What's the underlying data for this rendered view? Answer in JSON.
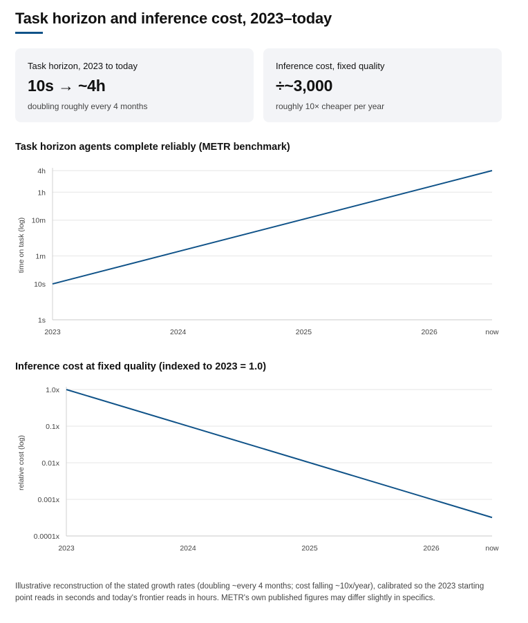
{
  "page": {
    "title": "Task horizon and inference cost, 2023–today"
  },
  "cards": [
    {
      "label": "Task horizon, 2023 to today",
      "value": "10s → ~4h",
      "sub": "doubling roughly every 4 months"
    },
    {
      "label": "Inference cost, fixed quality",
      "value": "÷~3,000",
      "sub": "roughly 10× cheaper per year"
    }
  ],
  "footnote": "Illustrative reconstruction of the stated growth rates (doubling ~every 4 months; cost falling ~10x/year), calibrated so the 2023 starting point reads in seconds and today's frontier reads in hours. METR's own published figures may differ slightly in specifics.",
  "colors": {
    "line": "#0f5288",
    "accent": "#0f5288",
    "card_bg": "#f3f4f7",
    "grid": "#e6e6e6"
  },
  "chart_data": [
    {
      "type": "line",
      "title": "Task horizon agents complete reliably (METR benchmark)",
      "xlabel": "",
      "ylabel": "time on task (log)",
      "yscale": "log",
      "x_ticks": [
        {
          "label": "2023",
          "value": 2023.0
        },
        {
          "label": "2024",
          "value": 2024.0
        },
        {
          "label": "2025",
          "value": 2025.0
        },
        {
          "label": "2026",
          "value": 2026.0
        },
        {
          "label": "now",
          "value": 2026.5
        }
      ],
      "y_ticks": [
        {
          "label": "1s",
          "value": 1
        },
        {
          "label": "10s",
          "value": 10
        },
        {
          "label": "1m",
          "value": 60
        },
        {
          "label": "10m",
          "value": 600
        },
        {
          "label": "1h",
          "value": 3600
        },
        {
          "label": "4h",
          "value": 14400
        }
      ],
      "xlim": [
        2023.0,
        2026.5
      ],
      "ylim": [
        1,
        14400
      ],
      "grid": true,
      "series": [
        {
          "x": [
            2023.0,
            2026.5
          ],
          "y": [
            10,
            14400
          ]
        }
      ]
    },
    {
      "type": "line",
      "title": "Inference cost at fixed quality (indexed to 2023 = 1.0)",
      "xlabel": "",
      "ylabel": "relative cost (log)",
      "yscale": "log",
      "x_ticks": [
        {
          "label": "2023",
          "value": 2023.0
        },
        {
          "label": "2024",
          "value": 2024.0
        },
        {
          "label": "2025",
          "value": 2025.0
        },
        {
          "label": "2026",
          "value": 2026.0
        },
        {
          "label": "now",
          "value": 2026.5
        }
      ],
      "y_ticks": [
        {
          "label": "0.0001x",
          "value": 0.0001
        },
        {
          "label": "0.001x",
          "value": 0.001
        },
        {
          "label": "0.01x",
          "value": 0.01
        },
        {
          "label": "0.1x",
          "value": 0.1
        },
        {
          "label": "1.0x",
          "value": 1.0
        }
      ],
      "xlim": [
        2023.0,
        2026.5
      ],
      "ylim": [
        0.0001,
        1.0
      ],
      "grid": true,
      "series": [
        {
          "x": [
            2023.0,
            2026.5
          ],
          "y": [
            1.0,
            0.00032
          ]
        }
      ]
    }
  ]
}
